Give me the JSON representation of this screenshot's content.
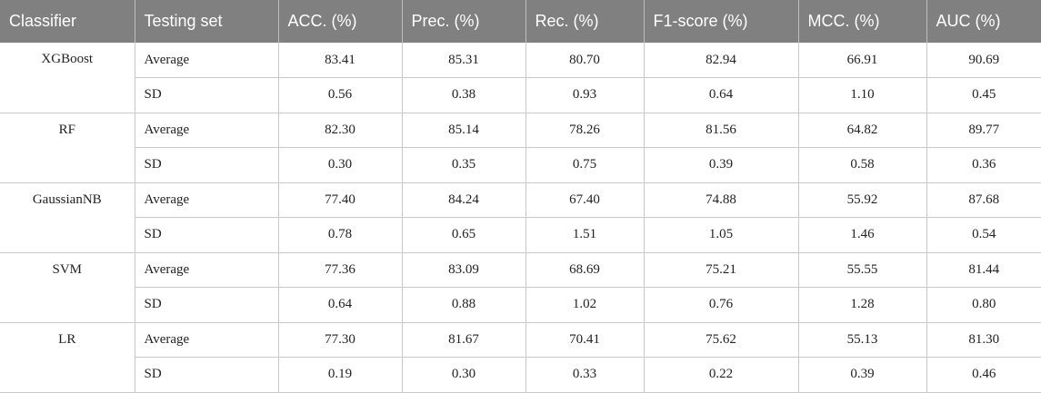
{
  "headers": [
    "Classifier",
    "Testing set",
    "ACC. (%)",
    "Prec. (%)",
    "Rec. (%)",
    "F1-score (%)",
    "MCC. (%)",
    "AUC (%)"
  ],
  "groups": [
    {
      "classifier": "XGBoost",
      "rows": [
        {
          "set": "Average",
          "values": [
            "83.41",
            "85.31",
            "80.70",
            "82.94",
            "66.91",
            "90.69"
          ]
        },
        {
          "set": "SD",
          "values": [
            "0.56",
            "0.38",
            "0.93",
            "0.64",
            "1.10",
            "0.45"
          ]
        }
      ]
    },
    {
      "classifier": "RF",
      "rows": [
        {
          "set": "Average",
          "values": [
            "82.30",
            "85.14",
            "78.26",
            "81.56",
            "64.82",
            "89.77"
          ]
        },
        {
          "set": "SD",
          "values": [
            "0.30",
            "0.35",
            "0.75",
            "0.39",
            "0.58",
            "0.36"
          ]
        }
      ]
    },
    {
      "classifier": "GaussianNB",
      "rows": [
        {
          "set": "Average",
          "values": [
            "77.40",
            "84.24",
            "67.40",
            "74.88",
            "55.92",
            "87.68"
          ]
        },
        {
          "set": "SD",
          "values": [
            "0.78",
            "0.65",
            "1.51",
            "1.05",
            "1.46",
            "0.54"
          ]
        }
      ]
    },
    {
      "classifier": "SVM",
      "rows": [
        {
          "set": "Average",
          "values": [
            "77.36",
            "83.09",
            "68.69",
            "75.21",
            "55.55",
            "81.44"
          ]
        },
        {
          "set": "SD",
          "values": [
            "0.64",
            "0.88",
            "1.02",
            "0.76",
            "1.28",
            "0.80"
          ]
        }
      ]
    },
    {
      "classifier": "LR",
      "rows": [
        {
          "set": "Average",
          "values": [
            "77.30",
            "81.67",
            "70.41",
            "75.62",
            "55.13",
            "81.30"
          ]
        },
        {
          "set": "SD",
          "values": [
            "0.19",
            "0.30",
            "0.33",
            "0.22",
            "0.39",
            "0.46"
          ]
        }
      ]
    }
  ]
}
